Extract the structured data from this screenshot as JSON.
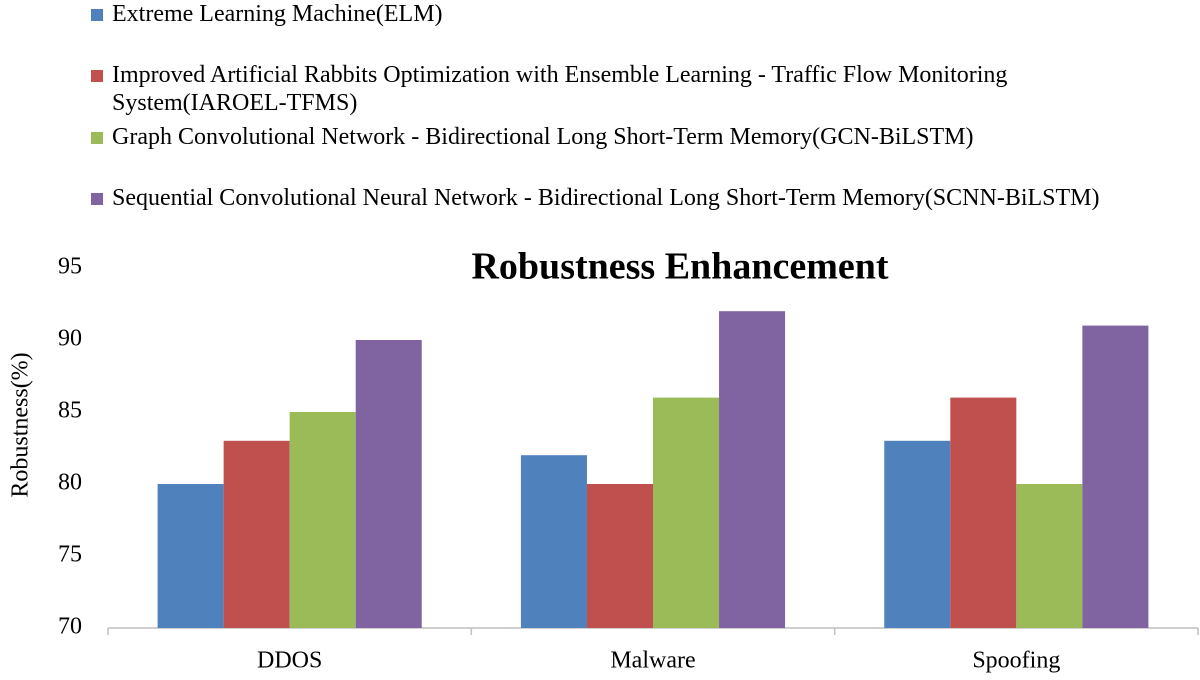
{
  "chart_data": {
    "type": "bar",
    "title": "Robustness Enhancement",
    "y_label": "Robustness(%)",
    "categories": [
      "DDOS",
      "Malware",
      "Spoofing"
    ],
    "series": [
      {
        "name": "Extreme Learning Machine(ELM)",
        "color": "#4f81bd",
        "values": [
          80,
          82,
          83
        ]
      },
      {
        "name": "Improved Artificial Rabbits Optimization with Ensemble Learning - Traffic Flow Monitoring System(IAROEL-TFMS)",
        "color": "#c0504d",
        "values": [
          83,
          80,
          86
        ]
      },
      {
        "name": "Graph Convolutional Network - Bidirectional Long Short-Term Memory(GCN-BiLSTM)",
        "color": "#9bbb59",
        "values": [
          85,
          86,
          80
        ]
      },
      {
        "name": "Sequential Convolutional Neural Network - Bidirectional Long Short-Term Memory(SCNN-BiLSTM)",
        "color": "#8064a2",
        "values": [
          90,
          92,
          91
        ]
      }
    ],
    "ylim": [
      70,
      95
    ],
    "yticks": [
      70,
      75,
      80,
      85,
      90,
      95
    ]
  }
}
